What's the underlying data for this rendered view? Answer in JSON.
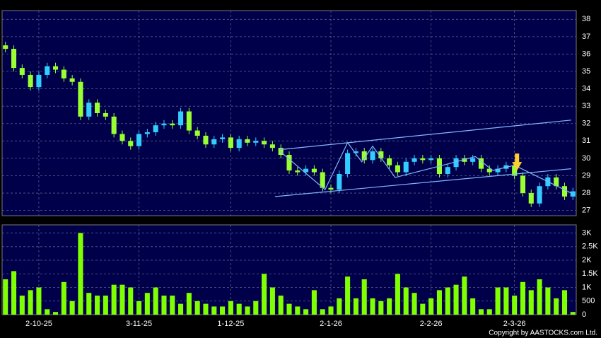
{
  "chart_data": {
    "type": "candlestick",
    "categories": [
      null,
      null,
      null,
      null,
      "2-10-25",
      null,
      null,
      null,
      null,
      null,
      null,
      null,
      null,
      null,
      null,
      null,
      "3-11-25",
      null,
      null,
      null,
      null,
      null,
      null,
      null,
      null,
      null,
      null,
      "1-12-25",
      null,
      null,
      null,
      null,
      null,
      null,
      null,
      null,
      null,
      null,
      null,
      "2-1-26",
      null,
      null,
      null,
      null,
      null,
      null,
      null,
      null,
      null,
      null,
      null,
      "2-2-26",
      null,
      null,
      null,
      null,
      null,
      null,
      null,
      null,
      null,
      "2-3-26",
      null,
      null,
      null,
      null,
      null,
      null,
      null
    ],
    "open": [
      36.5,
      36.3,
      35.2,
      34.8,
      34.1,
      34.8,
      35.3,
      35.1,
      34.6,
      34.4,
      32.4,
      33.2,
      32.6,
      32.4,
      31.4,
      31.0,
      30.7,
      31.4,
      31.5,
      31.9,
      32.0,
      31.9,
      32.7,
      31.6,
      31.3,
      30.8,
      31.1,
      31.2,
      30.6,
      31.1,
      30.9,
      31.0,
      30.8,
      30.6,
      30.2,
      29.3,
      29.2,
      29.4,
      29.2,
      28.3,
      28.2,
      29.1,
      30.3,
      30.4,
      29.9,
      30.4,
      30.0,
      29.6,
      29.2,
      29.8,
      30.0,
      29.9,
      30.0,
      29.1,
      29.5,
      30.0,
      29.8,
      30.0,
      29.4,
      29.2,
      29.4,
      29.6,
      29.0,
      28.0,
      27.4,
      28.4,
      28.9,
      28.4,
      27.8
    ],
    "high": [
      36.7,
      36.5,
      35.4,
      35.0,
      35.0,
      35.5,
      35.5,
      35.3,
      34.8,
      34.6,
      33.4,
      33.4,
      32.8,
      32.6,
      31.6,
      31.2,
      31.6,
      31.7,
      32.1,
      32.2,
      32.2,
      32.9,
      32.9,
      31.8,
      31.5,
      31.3,
      31.4,
      31.4,
      31.3,
      31.3,
      31.2,
      31.2,
      31.0,
      30.8,
      30.4,
      29.5,
      29.6,
      29.6,
      29.4,
      28.5,
      29.3,
      30.5,
      30.6,
      30.6,
      30.6,
      30.6,
      30.2,
      29.8,
      30.0,
      30.2,
      30.2,
      30.2,
      30.2,
      29.7,
      30.2,
      30.2,
      30.2,
      30.2,
      29.6,
      29.6,
      29.8,
      29.8,
      29.2,
      28.2,
      28.6,
      29.1,
      29.1,
      28.6,
      28.3
    ],
    "low": [
      36.1,
      35.0,
      34.6,
      33.9,
      33.9,
      34.6,
      34.9,
      34.4,
      34.2,
      32.2,
      32.2,
      32.4,
      32.2,
      31.2,
      30.8,
      30.5,
      30.5,
      31.2,
      31.3,
      31.7,
      31.7,
      31.7,
      31.4,
      31.1,
      30.6,
      30.6,
      30.9,
      30.4,
      30.4,
      30.7,
      30.7,
      30.6,
      30.4,
      30.0,
      29.1,
      29.0,
      29.0,
      29.0,
      28.1,
      28.0,
      28.0,
      28.9,
      30.1,
      29.7,
      29.7,
      29.8,
      29.4,
      29.0,
      29.0,
      29.6,
      29.7,
      29.7,
      28.9,
      28.9,
      29.3,
      29.6,
      29.6,
      29.2,
      29.0,
      29.0,
      29.2,
      28.8,
      27.8,
      27.2,
      27.2,
      28.2,
      28.2,
      27.6,
      27.6
    ],
    "close": [
      36.3,
      35.2,
      34.8,
      34.1,
      34.8,
      35.3,
      35.1,
      34.6,
      34.4,
      32.4,
      33.2,
      32.6,
      32.4,
      31.4,
      31.0,
      30.7,
      31.4,
      31.5,
      31.9,
      32.0,
      31.9,
      32.7,
      31.6,
      31.3,
      30.8,
      31.1,
      31.2,
      30.6,
      31.1,
      30.9,
      31.0,
      30.8,
      30.6,
      30.2,
      29.3,
      29.2,
      29.4,
      29.2,
      28.3,
      28.2,
      29.1,
      30.3,
      30.4,
      29.9,
      30.4,
      30.0,
      29.6,
      29.2,
      29.8,
      30.0,
      29.9,
      30.0,
      29.1,
      29.5,
      30.0,
      29.8,
      30.0,
      29.4,
      29.2,
      29.4,
      29.6,
      29.0,
      28.0,
      27.4,
      28.4,
      28.9,
      28.4,
      27.8,
      28.1
    ],
    "volume": [
      1300,
      1600,
      700,
      900,
      1000,
      200,
      100,
      1200,
      500,
      3000,
      800,
      700,
      700,
      1100,
      1100,
      1000,
      500,
      800,
      1000,
      700,
      700,
      400,
      800,
      500,
      400,
      300,
      300,
      500,
      400,
      300,
      500,
      1500,
      1000,
      700,
      400,
      300,
      200,
      900,
      200,
      300,
      600,
      1400,
      600,
      1300,
      600,
      500,
      600,
      1500,
      1000,
      800,
      400,
      600,
      900,
      1000,
      1100,
      1400,
      600,
      200,
      200,
      1000,
      1000,
      700,
      1200,
      900,
      1300,
      1000,
      600,
      900,
      100
    ],
    "up_color": "#33ccff",
    "down_color": "#99ff33",
    "volume_color": "#80ff00",
    "xlim": [
      -0.4,
      68.4
    ],
    "ylim": [
      26.7,
      38.5
    ],
    "yticks": [
      27,
      28,
      29,
      30,
      31,
      32,
      33,
      34,
      35,
      36,
      37,
      38
    ],
    "volume_ylim": [
      0,
      3300
    ],
    "volume_yticks": [
      0,
      500,
      {
        "value": 1000,
        "label": "1K"
      },
      {
        "value": 1500,
        "label": "1.5K"
      },
      {
        "value": 2000,
        "label": "2K"
      },
      {
        "value": 2500,
        "label": "2.5K"
      },
      {
        "value": 3000,
        "label": "3K"
      }
    ],
    "grid": true,
    "lines": [
      {
        "color": "#7fb8ff",
        "x": [
          32.9,
          67.8
        ],
        "y": [
          30.5,
          32.2
        ]
      },
      {
        "color": "#7fb8ff",
        "x": [
          32.3,
          67.8
        ],
        "y": [
          27.8,
          29.4
        ]
      },
      {
        "color": "#7fb8ff",
        "x": [
          32.9,
          38.3,
          41.0,
          42.7,
          44.0,
          46.7,
          53.2,
          56.3,
          58.4,
          61.0,
          67.8
        ],
        "y": [
          30.4,
          28.2,
          30.9,
          29.8,
          30.7,
          28.9,
          29.7,
          30.1,
          29.3,
          29.6,
          28.0
        ]
      }
    ],
    "arrow": {
      "x": 61.3,
      "y": 29.3,
      "color": "#ffcc33"
    },
    "copyright": "Copyright by AASTOCKS.com Ltd."
  }
}
